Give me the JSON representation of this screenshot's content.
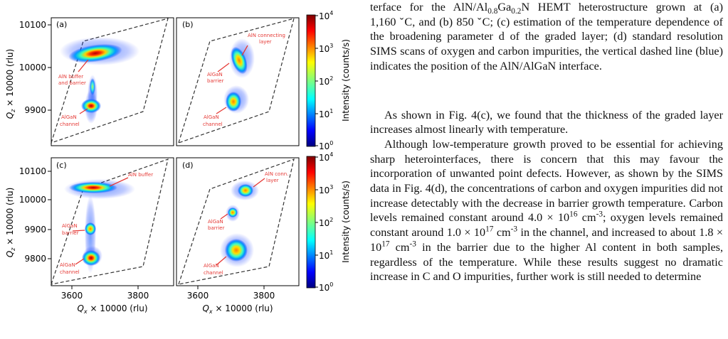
{
  "colorbar": {
    "label": "Intensity (counts/s)",
    "ticks": [
      {
        "base": "10",
        "exp": "4"
      },
      {
        "base": "10",
        "exp": "3"
      },
      {
        "base": "10",
        "exp": "2"
      },
      {
        "base": "10",
        "exp": "1"
      },
      {
        "base": "10",
        "exp": "0"
      }
    ]
  },
  "axes": {
    "ylabel_top": "Q",
    "ylabel_sub": "z",
    "ylabel_rest": " × 10000 (rlu)",
    "xlabel_top": "Q",
    "xlabel_sub": "x",
    "xlabel_rest": " × 10000 (rlu)",
    "top_yticks": [
      "10100",
      "10000",
      "9900"
    ],
    "bottom_yticks": [
      "10100",
      "10000",
      "9900",
      "9800"
    ],
    "xticks": [
      "3600",
      "3800"
    ]
  },
  "panels": {
    "a": {
      "label": "(a)",
      "ann1": "AlN buffer",
      "ann1b": "and barrier",
      "ann2": "AlGaN",
      "ann2b": "channel"
    },
    "b": {
      "label": "(b)",
      "ann1": "AlN connecting",
      "ann1b": "layer",
      "ann2": "AlGaN",
      "ann2b": "barrier",
      "ann3": "AlGaN",
      "ann3b": "channel"
    },
    "c": {
      "label": "(c)",
      "ann1": "AlN buffer",
      "ann2": "AlGaN",
      "ann2b": "barrier",
      "ann3": "AlGaN",
      "ann3b": "channel"
    },
    "d": {
      "label": "(d)",
      "ann1": "AlN conn.",
      "ann1b": "layer",
      "ann2": "AlGaN",
      "ann2b": "barrier",
      "ann3": "AlGaN",
      "ann3b": "channel"
    }
  },
  "text": {
    "caption_line1": "terface for the AlN/Al",
    "caption_sub1": "0.8",
    "caption_mid1": "Ga",
    "caption_sub2": "0.2",
    "caption_end1": "N HEMT heterostructure grown at (a)",
    "caption_rest": "1,160 ˇC, and (b) 850 ˇC; (c) estimation of the temperature dependence of the broadening parameter d of the graded layer; (d) standard resolution SIMS scans of oxygen and carbon impurities, the vertical dashed line (blue) indicates the position of the AlN/AlGaN interface.",
    "para1": "As shown in Fig. 4(c), we found that the thickness of the graded layer increases almost linearly with temperature.",
    "p2_a": "Although low-temperature growth proved to be essential for achieving sharp heterointerfaces, there is concern that this may favour the incorporation of unwanted point defects. However, as shown by the SIMS data in Fig. 4(d), the concentrations of carbon and oxygen impurities did not increase detectably with the decrease in barrier growth temperature. Carbon levels remained constant around 4.0 × 10",
    "p2_e1": "16",
    "p2_b": " cm",
    "p2_e2": "-3",
    "p2_c": "; oxygen levels remained constant around 1.0 × 10",
    "p2_e3": "17",
    "p2_d": " cm",
    "p2_e4": "-3",
    "p2_f": " in the channel, and increased to about 1.8 × 10",
    "p2_e5": "17",
    "p2_g": " cm",
    "p2_e6": "-3",
    "p2_h": " in the barrier due to the higher Al content in both samples, regardless of the temperature. While these results suggest no dramatic increase in C and O impurities, further work is still needed to determine"
  }
}
